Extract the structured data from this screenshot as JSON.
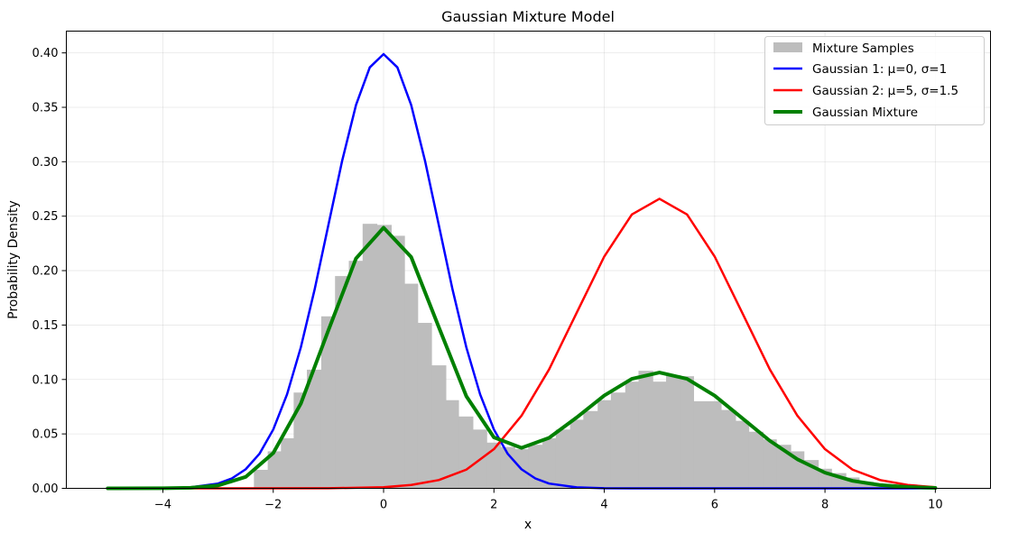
{
  "chart_data": {
    "type": "line",
    "title": "Gaussian Mixture Model",
    "xlabel": "x",
    "ylabel": "Probability Density",
    "xlim": [
      -5.75,
      11.0
    ],
    "ylim": [
      0.0,
      0.42
    ],
    "xticks": [
      -4,
      -2,
      0,
      2,
      4,
      6,
      8,
      10
    ],
    "xtick_labels": [
      "−4",
      "−2",
      "0",
      "2",
      "4",
      "6",
      "8",
      "10"
    ],
    "yticks": [
      0.0,
      0.05,
      0.1,
      0.15,
      0.2,
      0.25,
      0.3,
      0.35,
      0.4
    ],
    "ytick_labels": [
      "0.00",
      "0.05",
      "0.10",
      "0.15",
      "0.20",
      "0.25",
      "0.30",
      "0.35",
      "0.40"
    ],
    "grid": true,
    "legend_position": "top-right",
    "histogram": {
      "name": "Mixture Samples",
      "color": "#bdbdbd",
      "bin_edges": [
        -2.35,
        -2.1,
        -1.86,
        -1.63,
        -1.39,
        -1.13,
        -0.88,
        -0.63,
        -0.38,
        -0.12,
        0.14,
        0.38,
        0.62,
        0.87,
        1.13,
        1.36,
        1.62,
        1.87,
        2.12,
        2.38,
        2.62,
        2.88,
        3.12,
        3.38,
        3.62,
        3.88,
        4.12,
        4.38,
        4.62,
        4.88,
        5.12,
        5.38,
        5.62,
        5.88,
        6.12,
        6.38,
        6.62,
        6.88,
        7.12,
        7.38,
        7.62,
        7.88,
        8.12,
        8.38,
        8.62,
        8.88,
        9.12,
        9.38
      ],
      "values": [
        0.017,
        0.034,
        0.046,
        0.088,
        0.109,
        0.158,
        0.195,
        0.209,
        0.243,
        0.242,
        0.232,
        0.188,
        0.152,
        0.113,
        0.081,
        0.066,
        0.054,
        0.042,
        0.038,
        0.036,
        0.04,
        0.046,
        0.054,
        0.063,
        0.071,
        0.081,
        0.088,
        0.098,
        0.108,
        0.098,
        0.104,
        0.103,
        0.08,
        0.08,
        0.072,
        0.062,
        0.052,
        0.045,
        0.04,
        0.034,
        0.026,
        0.018,
        0.014,
        0.01,
        0.006,
        0.004,
        0.002
      ]
    },
    "series": [
      {
        "name": "Gaussian 1: μ=0, σ=1",
        "color": "#0000ff",
        "line_width": 2.5,
        "x": [
          -5.0,
          -4.5,
          -4.0,
          -3.5,
          -3.0,
          -2.75,
          -2.5,
          -2.25,
          -2.0,
          -1.75,
          -1.5,
          -1.25,
          -1.0,
          -0.75,
          -0.5,
          -0.25,
          0.0,
          0.25,
          0.5,
          0.75,
          1.0,
          1.25,
          1.5,
          1.75,
          2.0,
          2.25,
          2.5,
          2.75,
          3.0,
          3.5,
          4.0,
          4.5,
          5.0,
          6.0,
          7.0,
          8.0,
          9.0,
          10.0
        ],
        "y": [
          0.0,
          0.0,
          0.0001,
          0.0009,
          0.0044,
          0.0091,
          0.0175,
          0.0317,
          0.054,
          0.0863,
          0.1295,
          0.1826,
          0.242,
          0.3011,
          0.3521,
          0.3867,
          0.3989,
          0.3867,
          0.3521,
          0.3011,
          0.242,
          0.1826,
          0.1295,
          0.0863,
          0.054,
          0.0317,
          0.0175,
          0.0091,
          0.0044,
          0.0009,
          0.0001,
          0.0,
          0.0,
          0.0,
          0.0,
          0.0,
          0.0,
          0.0
        ]
      },
      {
        "name": "Gaussian 2: μ=5, σ=1.5",
        "color": "#ff0000",
        "line_width": 2.5,
        "x": [
          -5.0,
          -3.0,
          -1.0,
          0.0,
          0.5,
          1.0,
          1.5,
          2.0,
          2.5,
          3.0,
          3.5,
          4.0,
          4.5,
          5.0,
          5.5,
          6.0,
          6.5,
          7.0,
          7.5,
          8.0,
          8.5,
          9.0,
          9.5,
          10.0
        ],
        "y": [
          0.0,
          0.0,
          0.0001,
          0.001,
          0.0031,
          0.0076,
          0.0172,
          0.036,
          0.0667,
          0.1093,
          0.1613,
          0.213,
          0.2516,
          0.266,
          0.2516,
          0.213,
          0.1613,
          0.1093,
          0.0667,
          0.036,
          0.0172,
          0.0076,
          0.0031,
          0.001
        ]
      },
      {
        "name": "Gaussian Mixture",
        "color": "#008000",
        "line_width": 4,
        "x": [
          -5.0,
          -4.0,
          -3.5,
          -3.0,
          -2.5,
          -2.0,
          -1.5,
          -1.0,
          -0.5,
          0.0,
          0.5,
          1.0,
          1.5,
          2.0,
          2.5,
          3.0,
          3.5,
          4.0,
          4.5,
          5.0,
          5.5,
          6.0,
          6.5,
          7.0,
          7.5,
          8.0,
          8.5,
          9.0,
          9.5,
          10.0
        ],
        "y": [
          0.0,
          0.0001,
          0.0005,
          0.0026,
          0.0105,
          0.0324,
          0.0778,
          0.1452,
          0.2112,
          0.2394,
          0.2125,
          0.1482,
          0.0846,
          0.0468,
          0.0372,
          0.0464,
          0.0651,
          0.0853,
          0.1006,
          0.1064,
          0.1006,
          0.0852,
          0.0645,
          0.0437,
          0.0267,
          0.0144,
          0.0069,
          0.003,
          0.0012,
          0.0004
        ]
      }
    ]
  }
}
